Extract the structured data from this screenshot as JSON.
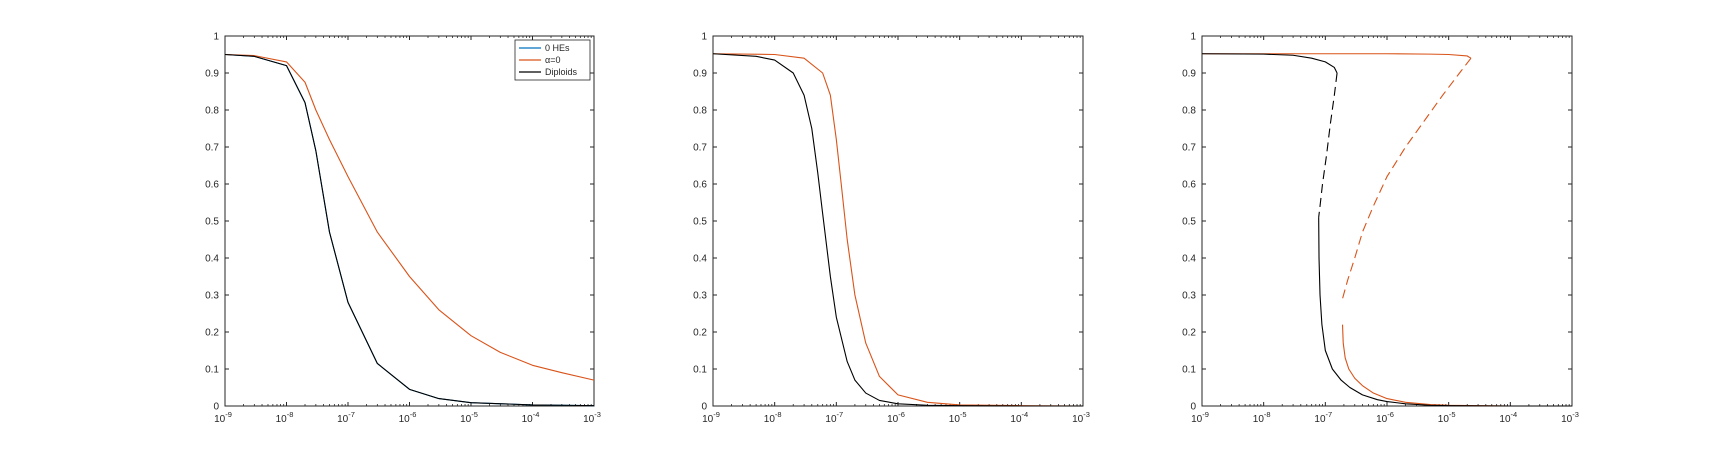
{
  "chart_data": [
    {
      "type": "line",
      "x_scale": "log",
      "xlim": [
        1e-09,
        0.001
      ],
      "ylim": [
        0,
        1
      ],
      "x_tick_exponents": [
        -9,
        -8,
        -7,
        -6,
        -5,
        -4,
        -3
      ],
      "x_tick_base": "10",
      "y_ticks": [
        "0",
        "0.1",
        "0.2",
        "0.3",
        "0.4",
        "0.5",
        "0.6",
        "0.7",
        "0.8",
        "0.9",
        "1"
      ],
      "legend": {
        "placement": "top-right",
        "entries": [
          {
            "label": "0 HEs",
            "color": "#0072bd"
          },
          {
            "label": "α=0",
            "color": "#d95319"
          },
          {
            "label": "Diploids",
            "color": "#000000"
          }
        ]
      },
      "series": [
        {
          "name": "0 HEs",
          "color": "#0072bd",
          "style": "solid",
          "x": [
            1e-09,
            3e-09,
            1e-08,
            2e-08,
            3e-08,
            5e-08,
            1e-07,
            3e-07,
            1e-06,
            3e-06,
            1e-05,
            0.0001,
            0.001
          ],
          "y": [
            0.95,
            0.945,
            0.92,
            0.82,
            0.69,
            0.47,
            0.28,
            0.115,
            0.045,
            0.02,
            0.009,
            0.003,
            0.001
          ]
        },
        {
          "name": "α=0",
          "color": "#d95319",
          "style": "solid",
          "x": [
            1e-09,
            3e-09,
            1e-08,
            2e-08,
            3e-08,
            5e-08,
            1e-07,
            3e-07,
            1e-06,
            3e-06,
            1e-05,
            3e-05,
            0.0001,
            0.0003,
            0.001
          ],
          "y": [
            0.95,
            0.947,
            0.93,
            0.875,
            0.8,
            0.72,
            0.62,
            0.47,
            0.35,
            0.26,
            0.19,
            0.145,
            0.11,
            0.09,
            0.07
          ]
        },
        {
          "name": "Diploids",
          "color": "#000000",
          "style": "solid",
          "x": [
            1e-09,
            3e-09,
            1e-08,
            2e-08,
            3e-08,
            5e-08,
            1e-07,
            3e-07,
            1e-06,
            3e-06,
            1e-05,
            0.0001,
            0.001
          ],
          "y": [
            0.95,
            0.945,
            0.92,
            0.82,
            0.69,
            0.47,
            0.28,
            0.115,
            0.045,
            0.02,
            0.009,
            0.003,
            0.001
          ]
        }
      ]
    },
    {
      "type": "line",
      "x_scale": "log",
      "xlim": [
        1e-09,
        0.001
      ],
      "ylim": [
        0,
        1
      ],
      "x_tick_exponents": [
        -9,
        -8,
        -7,
        -6,
        -5,
        -4,
        -3
      ],
      "x_tick_base": "10",
      "y_ticks": [
        "0",
        "0.1",
        "0.2",
        "0.3",
        "0.4",
        "0.5",
        "0.6",
        "0.7",
        "0.8",
        "0.9",
        "1"
      ],
      "series": [
        {
          "color": "#d95319",
          "style": "solid",
          "x": [
            1e-09,
            1e-08,
            3e-08,
            6e-08,
            8e-08,
            1e-07,
            1.2e-07,
            1.5e-07,
            2e-07,
            3e-07,
            5e-07,
            1e-06,
            3e-06,
            1e-05,
            0.0001,
            0.001
          ],
          "y": [
            0.952,
            0.95,
            0.94,
            0.9,
            0.84,
            0.72,
            0.6,
            0.45,
            0.3,
            0.17,
            0.08,
            0.03,
            0.01,
            0.003,
            0.001,
            0.0
          ]
        },
        {
          "color": "#000000",
          "style": "solid",
          "x": [
            1e-09,
            5e-09,
            1e-08,
            2e-08,
            3e-08,
            4e-08,
            5e-08,
            6e-08,
            8e-08,
            1e-07,
            1.5e-07,
            2e-07,
            3e-07,
            5e-07,
            1e-06,
            3e-06,
            1e-05,
            0.0001,
            0.001
          ],
          "y": [
            0.952,
            0.945,
            0.935,
            0.9,
            0.84,
            0.75,
            0.63,
            0.52,
            0.35,
            0.24,
            0.12,
            0.07,
            0.035,
            0.015,
            0.006,
            0.002,
            0.001,
            0.0,
            0.0
          ]
        }
      ]
    },
    {
      "type": "line",
      "x_scale": "log",
      "xlim": [
        1e-09,
        0.001
      ],
      "ylim": [
        0,
        1
      ],
      "x_tick_exponents": [
        -9,
        -8,
        -7,
        -6,
        -5,
        -4,
        -3
      ],
      "x_tick_base": "10",
      "y_ticks": [
        "0",
        "0.1",
        "0.2",
        "0.3",
        "0.4",
        "0.5",
        "0.6",
        "0.7",
        "0.8",
        "0.9",
        "1"
      ],
      "series": [
        {
          "color": "#d95319",
          "style": "solid",
          "x": [
            1e-09,
            1e-08,
            1e-07,
            1e-06,
            5e-06,
            1e-05,
            2e-05,
            2.3e-05
          ],
          "y": [
            0.952,
            0.952,
            0.952,
            0.952,
            0.951,
            0.95,
            0.946,
            0.94
          ]
        },
        {
          "color": "#d95319",
          "style": "dashed",
          "x": [
            2.3e-05,
            1.5e-05,
            8e-06,
            4e-06,
            2e-06,
            1e-06,
            6e-07,
            4e-07,
            3e-07,
            2.3e-07,
            1.9e-07
          ],
          "y": [
            0.94,
            0.9,
            0.84,
            0.77,
            0.7,
            0.62,
            0.54,
            0.47,
            0.4,
            0.34,
            0.29
          ]
        },
        {
          "color": "#d95319",
          "style": "solid",
          "x": [
            1.9e-07,
            1.95e-07,
            2.1e-07,
            2.4e-07,
            3e-07,
            4e-07,
            6e-07,
            1e-06,
            2e-06,
            5e-06,
            1e-05,
            0.0001,
            0.001
          ],
          "y": [
            0.22,
            0.17,
            0.13,
            0.1,
            0.075,
            0.055,
            0.035,
            0.02,
            0.01,
            0.004,
            0.002,
            0.0,
            0.0
          ]
        },
        {
          "color": "#000000",
          "style": "solid",
          "x": [
            1e-09,
            1e-08,
            3e-08,
            6e-08,
            1e-07,
            1.4e-07,
            1.55e-07
          ],
          "y": [
            0.952,
            0.951,
            0.948,
            0.94,
            0.93,
            0.915,
            0.9
          ]
        },
        {
          "color": "#000000",
          "style": "dashed",
          "x": [
            1.55e-07,
            1.4e-07,
            1.2e-07,
            1.05e-07,
            9e-08,
            8.2e-08,
            7.8e-08
          ],
          "y": [
            0.9,
            0.84,
            0.76,
            0.68,
            0.6,
            0.54,
            0.51
          ]
        },
        {
          "color": "#000000",
          "style": "solid",
          "x": [
            7.8e-08,
            7.9e-08,
            8.2e-08,
            8.8e-08,
            1e-07,
            1.3e-07,
            1.8e-07,
            2.5e-07,
            4e-07,
            7e-07,
            1e-06,
            2e-06,
            5e-06,
            1e-05,
            0.0001,
            0.001
          ],
          "y": [
            0.51,
            0.4,
            0.3,
            0.22,
            0.15,
            0.1,
            0.07,
            0.05,
            0.03,
            0.017,
            0.012,
            0.006,
            0.002,
            0.001,
            0.0,
            0.0
          ]
        }
      ]
    }
  ]
}
